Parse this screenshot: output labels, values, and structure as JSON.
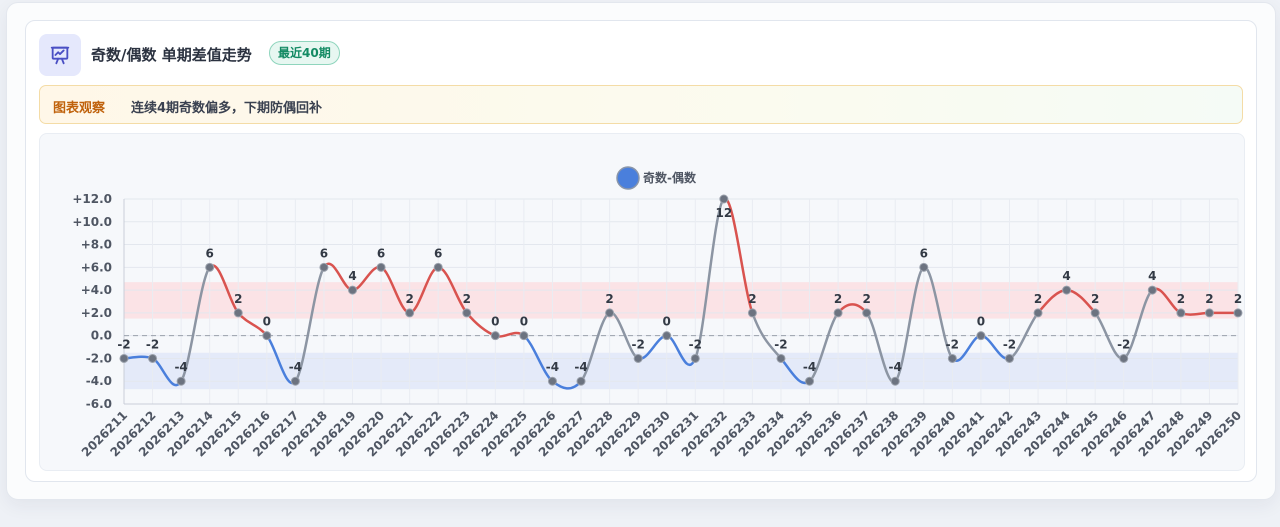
{
  "header": {
    "icon": "presentation-chart-icon",
    "title": "奇数/偶数 单期差值走势",
    "badge": "最近40期"
  },
  "note": {
    "label": "图表观察",
    "text": "连续4期奇数偏多，下期防偶回补"
  },
  "colors": {
    "positive": "#d9534f",
    "negative": "#4a7fdc",
    "neutral": "#8c95a3",
    "legend": "#4a7fdc",
    "accent_badge": "#138a63"
  },
  "chart_data": {
    "type": "line",
    "title": "",
    "legend": {
      "label": "奇数-偶数",
      "position": "top"
    },
    "x": [
      "2026211",
      "2026212",
      "2026213",
      "2026214",
      "2026215",
      "2026216",
      "2026217",
      "2026218",
      "2026219",
      "2026220",
      "2026221",
      "2026222",
      "2026223",
      "2026224",
      "2026225",
      "2026226",
      "2026227",
      "2026228",
      "2026229",
      "2026230",
      "2026231",
      "2026232",
      "2026233",
      "2026234",
      "2026235",
      "2026236",
      "2026237",
      "2026238",
      "2026239",
      "2026240",
      "2026241",
      "2026242",
      "2026243",
      "2026244",
      "2026245",
      "2026246",
      "2026247",
      "2026248",
      "2026249",
      "2026250"
    ],
    "series": [
      {
        "name": "奇数-偶数",
        "values": [
          -2,
          -2,
          -4,
          6,
          2,
          0,
          -4,
          6,
          4,
          6,
          2,
          6,
          2,
          0,
          0,
          -4,
          -4,
          2,
          -2,
          0,
          -2,
          12,
          2,
          -2,
          -4,
          2,
          2,
          -4,
          6,
          -2,
          0,
          -2,
          2,
          4,
          2,
          -2,
          4,
          2,
          2,
          2
        ]
      }
    ],
    "ylim": [
      -6,
      12
    ],
    "yticks": [
      -6,
      -4,
      -2,
      0,
      2,
      4,
      6,
      8,
      10,
      12
    ],
    "ytick_labels": [
      "-6.0",
      "-4.0",
      "-2.0",
      "0.0",
      "+2.0",
      "+4.0",
      "+6.0",
      "+8.0",
      "+10.0",
      "+12.0"
    ],
    "bands": [
      {
        "from": 1.5,
        "to": 4.7,
        "color": "#fbe3e6"
      },
      {
        "from": -4.7,
        "to": -1.5,
        "color": "#e4eaf9"
      }
    ],
    "grid": true
  }
}
